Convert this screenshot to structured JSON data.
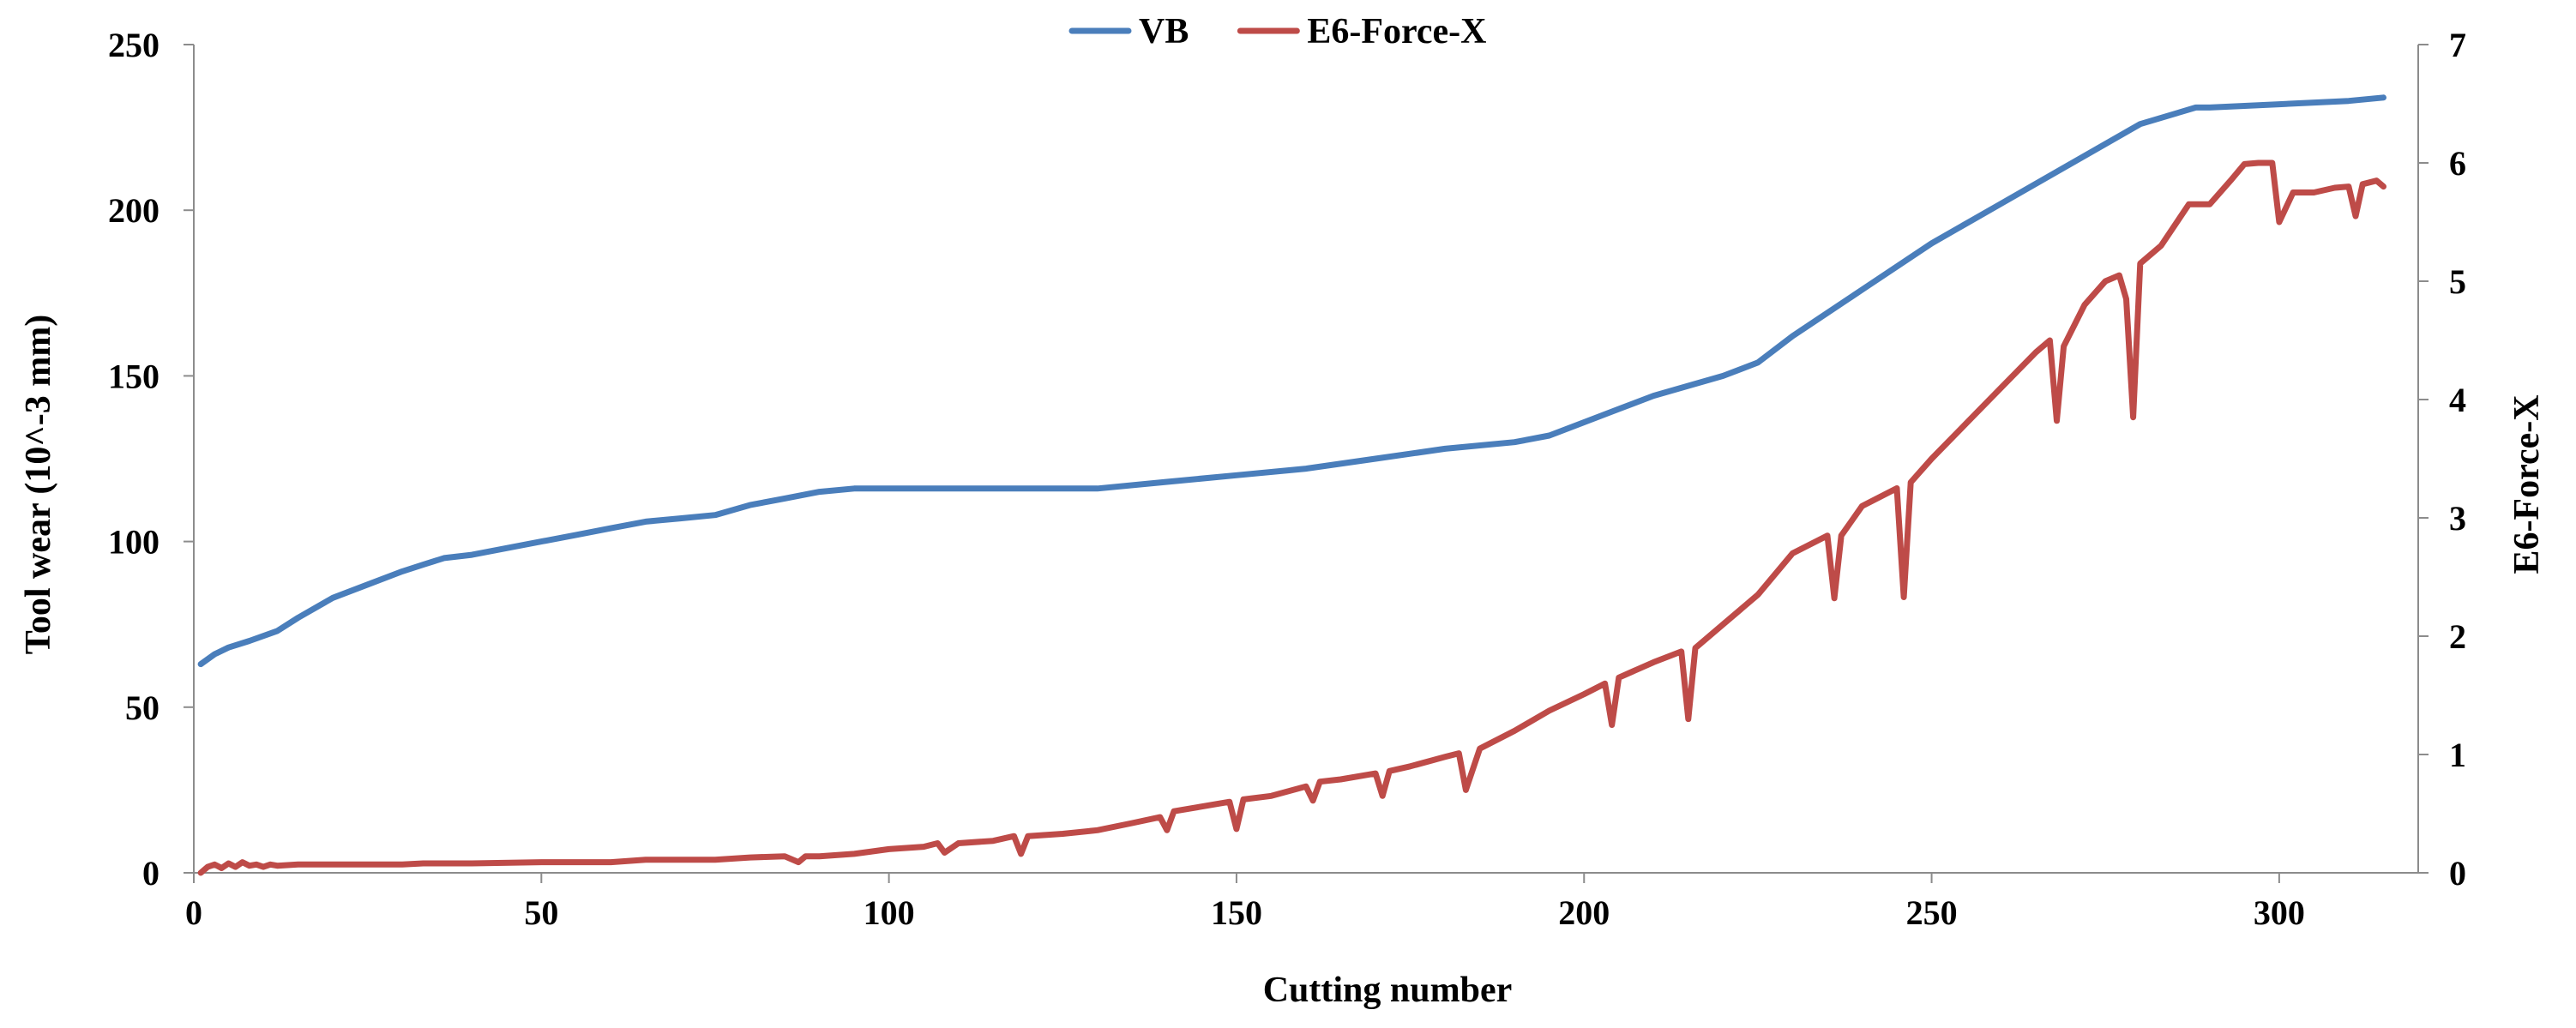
{
  "chart_data": {
    "type": "line",
    "title": "",
    "xlabel": "Cutting number",
    "ylabel": "Tool wear (10^-3 mm)",
    "y2label": "E6-Force-X",
    "xlim": [
      0,
      320
    ],
    "ylim": [
      0,
      250
    ],
    "y2lim": [
      0,
      7
    ],
    "xticks": [
      0,
      50,
      100,
      150,
      200,
      250,
      300
    ],
    "yticks": [
      0,
      50,
      100,
      150,
      200,
      250
    ],
    "y2ticks": [
      0,
      1,
      2,
      3,
      4,
      5,
      6,
      7
    ],
    "grid": false,
    "legend_position": "top-center",
    "series": [
      {
        "name": "VB",
        "axis": "left",
        "color": "#4a7ebb",
        "x": [
          1,
          3,
          5,
          8,
          12,
          15,
          20,
          25,
          30,
          33,
          36,
          40,
          45,
          50,
          55,
          60,
          65,
          70,
          75,
          80,
          85,
          90,
          95,
          100,
          110,
          120,
          130,
          140,
          150,
          160,
          170,
          180,
          190,
          195,
          200,
          205,
          210,
          215,
          220,
          225,
          230,
          240,
          250,
          260,
          270,
          280,
          288,
          290,
          300,
          310,
          315
        ],
        "values": [
          63,
          66,
          68,
          70,
          73,
          77,
          83,
          87,
          91,
          93,
          95,
          96,
          98,
          100,
          102,
          104,
          106,
          107,
          108,
          111,
          113,
          115,
          116,
          116,
          116,
          116,
          116,
          118,
          120,
          122,
          125,
          128,
          130,
          132,
          136,
          140,
          144,
          147,
          150,
          154,
          162,
          176,
          190,
          202,
          214,
          226,
          231,
          231,
          232,
          233,
          234
        ]
      },
      {
        "name": "E6-Force-X",
        "axis": "right",
        "color": "#be4b48",
        "x": [
          1,
          2,
          3,
          4,
          5,
          6,
          7,
          8,
          9,
          10,
          11,
          12,
          15,
          20,
          25,
          30,
          33,
          35,
          40,
          50,
          60,
          65,
          70,
          75,
          80,
          85,
          87,
          88,
          90,
          95,
          100,
          105,
          107,
          108,
          110,
          115,
          118,
          119,
          120,
          125,
          130,
          135,
          139,
          140,
          141,
          145,
          149,
          150,
          151,
          155,
          160,
          161,
          162,
          165,
          170,
          171,
          172,
          175,
          180,
          182,
          183,
          185,
          190,
          195,
          200,
          203,
          204,
          205,
          210,
          214,
          215,
          216,
          220,
          225,
          230,
          235,
          236,
          237,
          240,
          245,
          246,
          247,
          250,
          255,
          260,
          265,
          267,
          268,
          269,
          272,
          275,
          277,
          278,
          279,
          280,
          283,
          287,
          290,
          293,
          295,
          297,
          299,
          300,
          302,
          305,
          308,
          310,
          311,
          312,
          314,
          315
        ],
        "values": [
          0.0,
          0.05,
          0.07,
          0.04,
          0.08,
          0.05,
          0.09,
          0.06,
          0.07,
          0.05,
          0.07,
          0.06,
          0.07,
          0.07,
          0.07,
          0.07,
          0.08,
          0.08,
          0.08,
          0.09,
          0.09,
          0.11,
          0.11,
          0.11,
          0.13,
          0.14,
          0.09,
          0.14,
          0.14,
          0.16,
          0.2,
          0.22,
          0.25,
          0.17,
          0.25,
          0.27,
          0.31,
          0.16,
          0.31,
          0.33,
          0.36,
          0.42,
          0.47,
          0.36,
          0.52,
          0.56,
          0.6,
          0.37,
          0.62,
          0.65,
          0.73,
          0.61,
          0.77,
          0.79,
          0.84,
          0.65,
          0.86,
          0.9,
          0.98,
          1.01,
          0.7,
          1.05,
          1.2,
          1.37,
          1.51,
          1.6,
          1.25,
          1.65,
          1.78,
          1.87,
          1.3,
          1.9,
          2.1,
          2.35,
          2.7,
          2.85,
          2.32,
          2.85,
          3.1,
          3.25,
          2.33,
          3.3,
          3.5,
          3.8,
          4.1,
          4.4,
          4.5,
          3.82,
          4.45,
          4.8,
          5.0,
          5.05,
          4.85,
          3.85,
          5.15,
          5.3,
          5.65,
          5.65,
          5.85,
          5.99,
          6.0,
          6.0,
          5.5,
          5.75,
          5.75,
          5.79,
          5.8,
          5.55,
          5.82,
          5.85,
          5.8
        ]
      }
    ]
  }
}
